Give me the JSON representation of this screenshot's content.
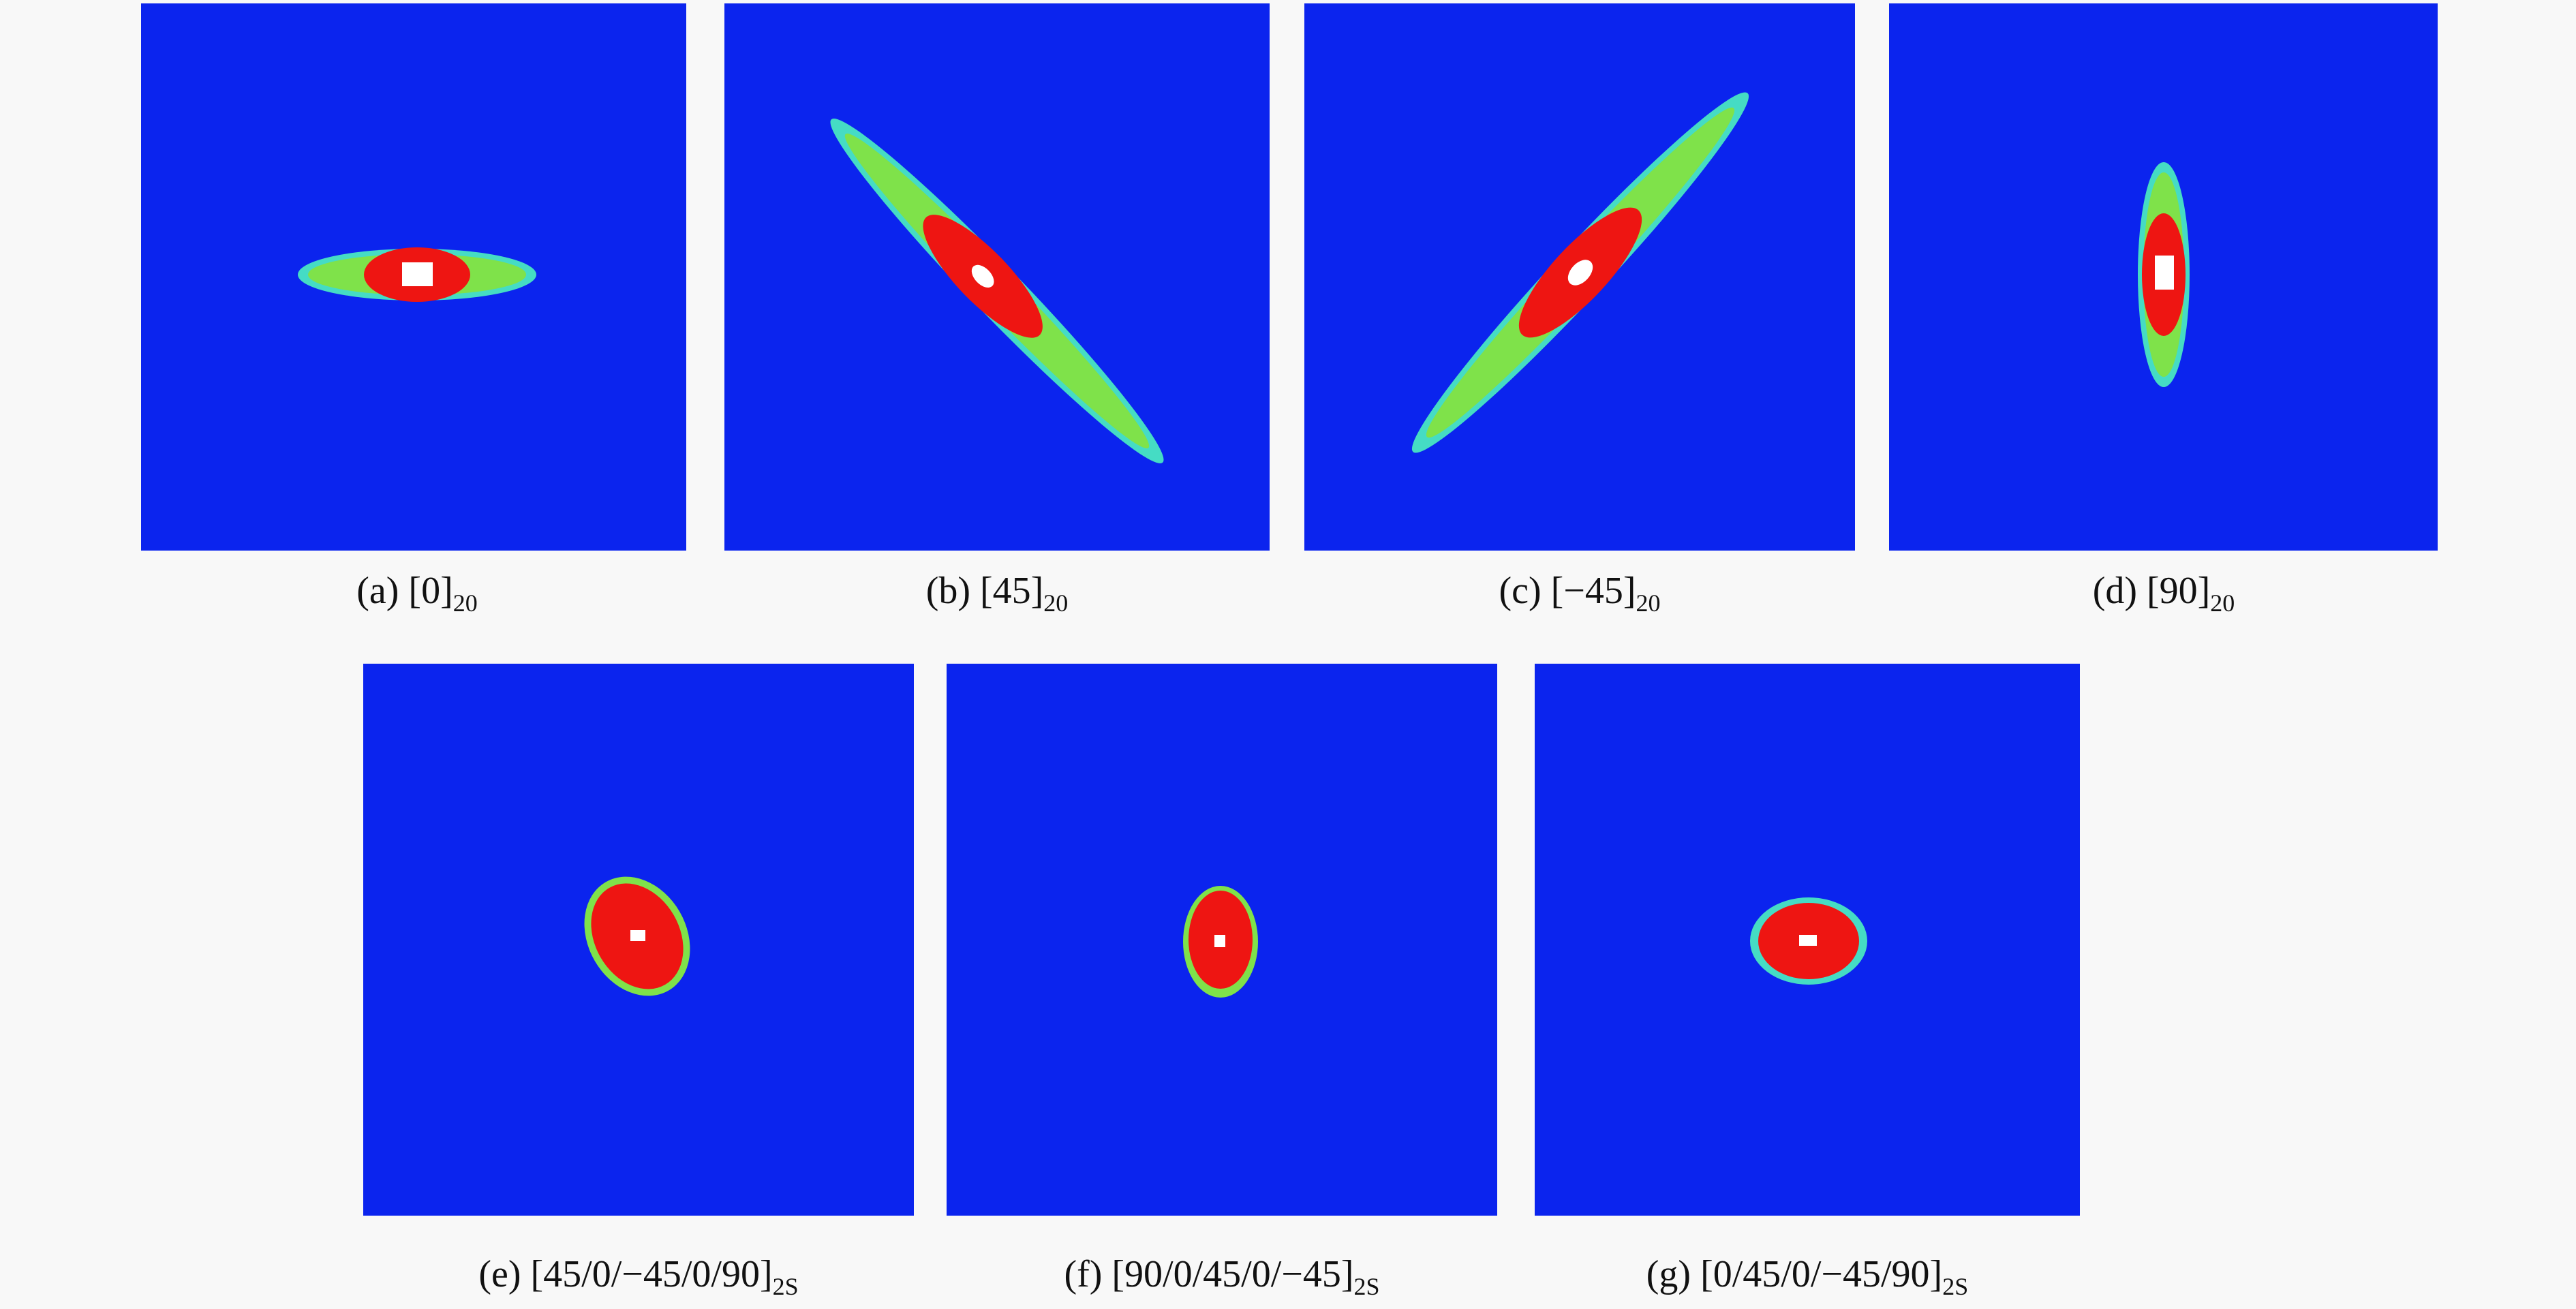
{
  "panels": [
    {
      "label": "(a) [0]",
      "subscript": "20"
    },
    {
      "label": "(b) [45]",
      "subscript": "20"
    },
    {
      "label": "(c) [−45]",
      "subscript": "20"
    },
    {
      "label": "(d) [90]",
      "subscript": "20"
    },
    {
      "label": "(e) [45/0/−45/0/90]",
      "subscript": "2S"
    },
    {
      "label": "(f) [90/0/45/0/−45]",
      "subscript": "2S"
    },
    {
      "label": "(g) [0/45/0/−45/90]",
      "subscript": "2S"
    }
  ]
}
